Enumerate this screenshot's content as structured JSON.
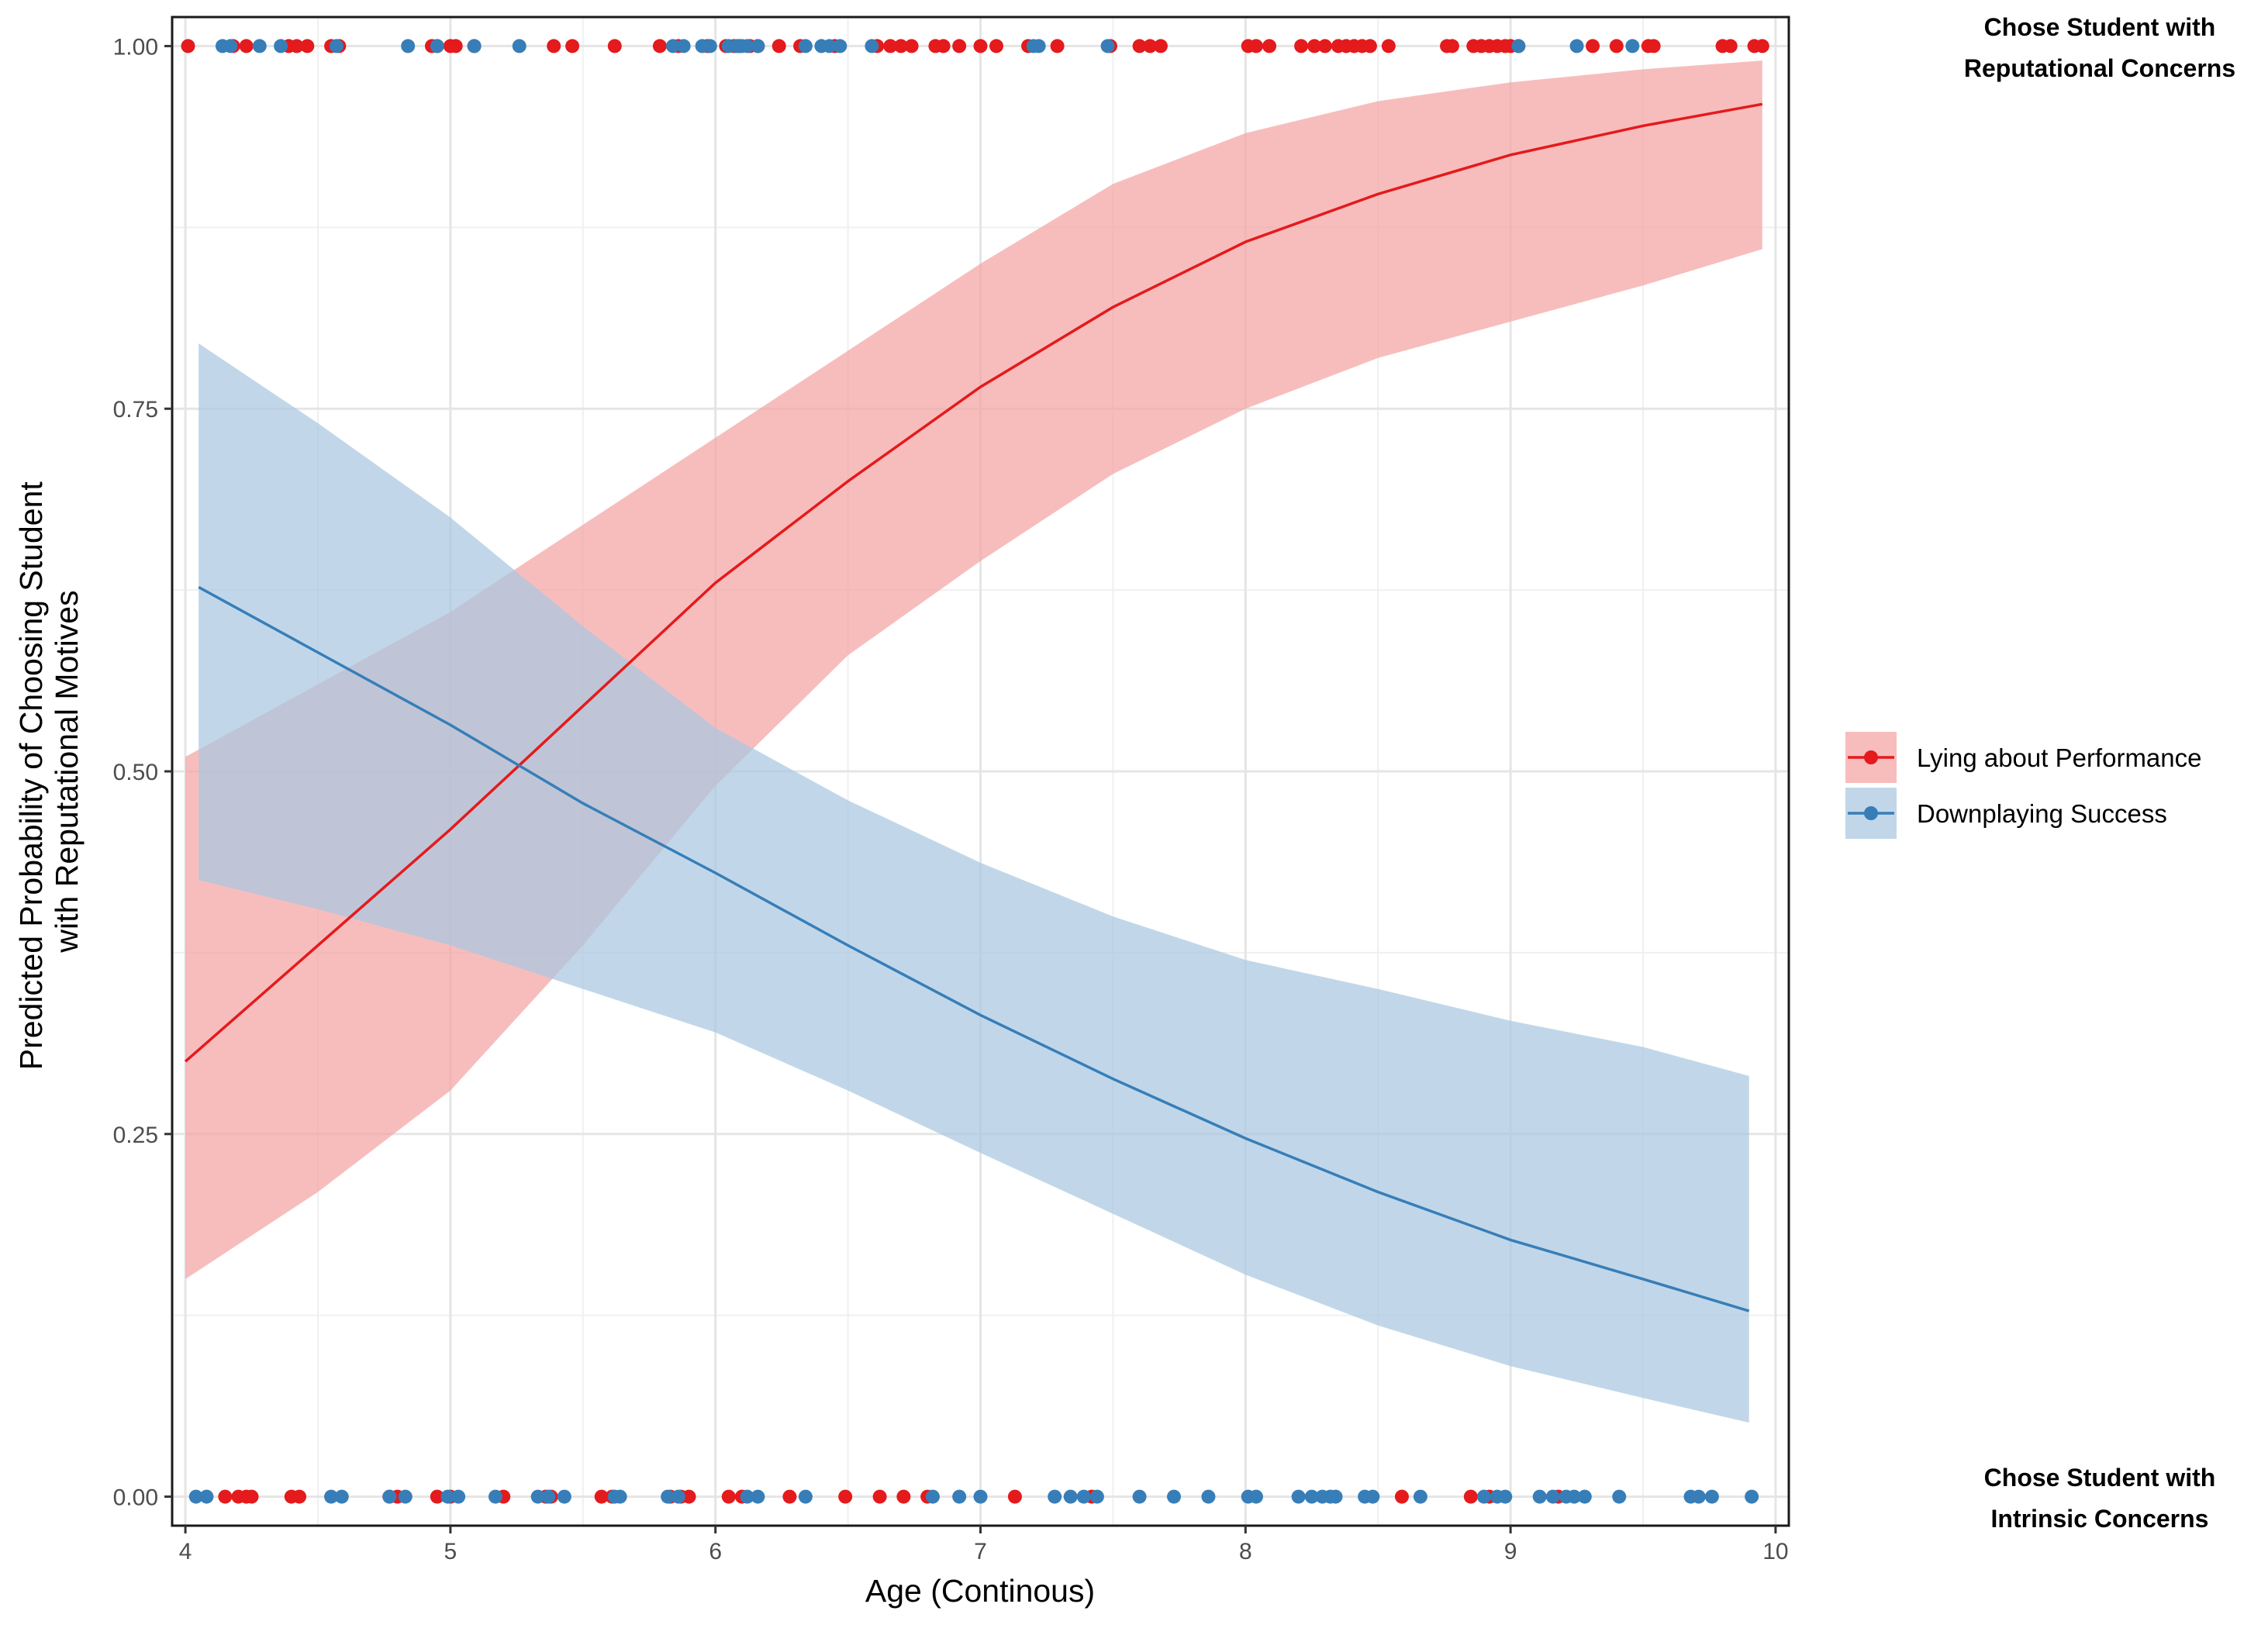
{
  "chart_data": {
    "type": "line",
    "title": "",
    "xlabel": "Age (Continous)",
    "ylabel_lines": [
      "Predicted Probability of Choosing Student",
      "with Reputational Motives"
    ],
    "xlim": [
      3.95,
      10.05
    ],
    "ylim": [
      -0.02,
      1.02
    ],
    "x_ticks": [
      4,
      5,
      6,
      7,
      8,
      9,
      10
    ],
    "x_tick_labels": [
      "4",
      "5",
      "6",
      "7",
      "8",
      "9",
      "10"
    ],
    "y_ticks": [
      0,
      0.25,
      0.5,
      0.75,
      1
    ],
    "y_tick_labels": [
      "0.00",
      "0.25",
      "0.50",
      "0.75",
      "1.00"
    ],
    "grid": true,
    "legend_position": "right",
    "annotations": [
      {
        "lines": [
          "Chose Student with",
          "Reputational Concerns"
        ],
        "position": "top-right"
      },
      {
        "lines": [
          "Chose Student with",
          "Intrinsic Concerns"
        ],
        "position": "bottom-right"
      }
    ],
    "series": [
      {
        "name": "Lying about Performance",
        "color": "#e41a1c",
        "band_color": "#f4a3a4",
        "x": [
          4.0,
          4.5,
          5.0,
          5.5,
          6.0,
          6.5,
          7.0,
          7.5,
          8.0,
          8.5,
          9.0,
          9.5,
          9.95
        ],
        "fit": [
          0.3,
          0.38,
          0.46,
          0.545,
          0.63,
          0.7,
          0.765,
          0.82,
          0.865,
          0.898,
          0.925,
          0.945,
          0.96
        ],
        "lower": [
          0.15,
          0.21,
          0.28,
          0.38,
          0.49,
          0.58,
          0.645,
          0.705,
          0.75,
          0.785,
          0.81,
          0.835,
          0.86
        ],
        "upper": [
          0.51,
          0.56,
          0.61,
          0.67,
          0.73,
          0.79,
          0.85,
          0.905,
          0.94,
          0.962,
          0.975,
          0.984,
          0.99
        ],
        "points_y1": [
          4.01,
          4.18,
          4.23,
          4.39,
          4.42,
          4.46,
          4.55,
          4.58,
          4.93,
          4.95,
          5.0,
          5.02,
          5.09,
          5.39,
          5.46,
          5.62,
          5.79,
          5.86,
          5.97,
          6.04,
          6.07,
          6.09,
          6.13,
          6.16,
          6.24,
          6.32,
          6.45,
          6.61,
          6.66,
          6.7,
          6.74,
          6.83,
          6.86,
          6.92,
          7.0,
          7.06,
          7.18,
          7.29,
          7.49,
          7.6,
          7.64,
          7.68,
          8.01,
          8.04,
          8.09,
          8.21,
          8.26,
          8.3,
          8.35,
          8.38,
          8.41,
          8.44,
          8.47,
          8.54,
          8.76,
          8.78,
          8.86,
          8.89,
          8.92,
          8.95,
          8.98,
          9.0,
          9.03,
          9.31,
          9.4,
          9.52,
          9.54,
          9.8,
          9.83,
          9.92,
          9.95
        ],
        "points_y0": [
          4.15,
          4.2,
          4.23,
          4.25,
          4.4,
          4.43,
          4.77,
          4.8,
          4.95,
          5.0,
          5.2,
          5.36,
          5.38,
          5.57,
          5.61,
          5.83,
          5.87,
          5.9,
          6.05,
          6.1,
          6.28,
          6.49,
          6.62,
          6.71,
          6.8,
          7.13,
          7.42,
          8.59,
          8.85,
          8.92,
          9.18
        ]
      },
      {
        "name": "Downplaying Success",
        "color": "#377eb8",
        "band_color": "#a9c8e0",
        "x": [
          4.05,
          4.5,
          5.0,
          5.5,
          6.0,
          6.5,
          7.0,
          7.5,
          8.0,
          8.5,
          9.0,
          9.5,
          9.9
        ],
        "fit": [
          0.627,
          0.582,
          0.532,
          0.478,
          0.43,
          0.38,
          0.332,
          0.288,
          0.247,
          0.21,
          0.177,
          0.15,
          0.128
        ],
        "lower": [
          0.425,
          0.405,
          0.38,
          0.35,
          0.32,
          0.28,
          0.237,
          0.195,
          0.153,
          0.118,
          0.09,
          0.068,
          0.051
        ],
        "upper": [
          0.795,
          0.74,
          0.675,
          0.6,
          0.53,
          0.48,
          0.437,
          0.4,
          0.37,
          0.35,
          0.328,
          0.31,
          0.29
        ],
        "points_y1": [
          4.14,
          4.17,
          4.28,
          4.36,
          4.57,
          4.84,
          4.95,
          5.09,
          5.26,
          5.84,
          5.88,
          5.95,
          5.98,
          6.05,
          6.08,
          6.1,
          6.12,
          6.16,
          6.34,
          6.4,
          6.43,
          6.47,
          6.59,
          7.2,
          7.22,
          7.48,
          9.03,
          9.25,
          9.46
        ],
        "points_y0": [
          4.04,
          4.08,
          4.55,
          4.59,
          4.77,
          4.83,
          4.99,
          5.03,
          5.17,
          5.33,
          5.37,
          5.43,
          5.62,
          5.64,
          5.82,
          5.86,
          6.12,
          6.16,
          6.34,
          6.82,
          6.92,
          7.0,
          7.28,
          7.34,
          7.39,
          7.44,
          7.6,
          7.73,
          7.86,
          8.01,
          8.04,
          8.2,
          8.25,
          8.29,
          8.32,
          8.34,
          8.45,
          8.48,
          8.66,
          8.9,
          8.95,
          8.98,
          9.11,
          9.16,
          9.21,
          9.24,
          9.28,
          9.41,
          9.68,
          9.71,
          9.76,
          9.91
        ]
      }
    ]
  }
}
